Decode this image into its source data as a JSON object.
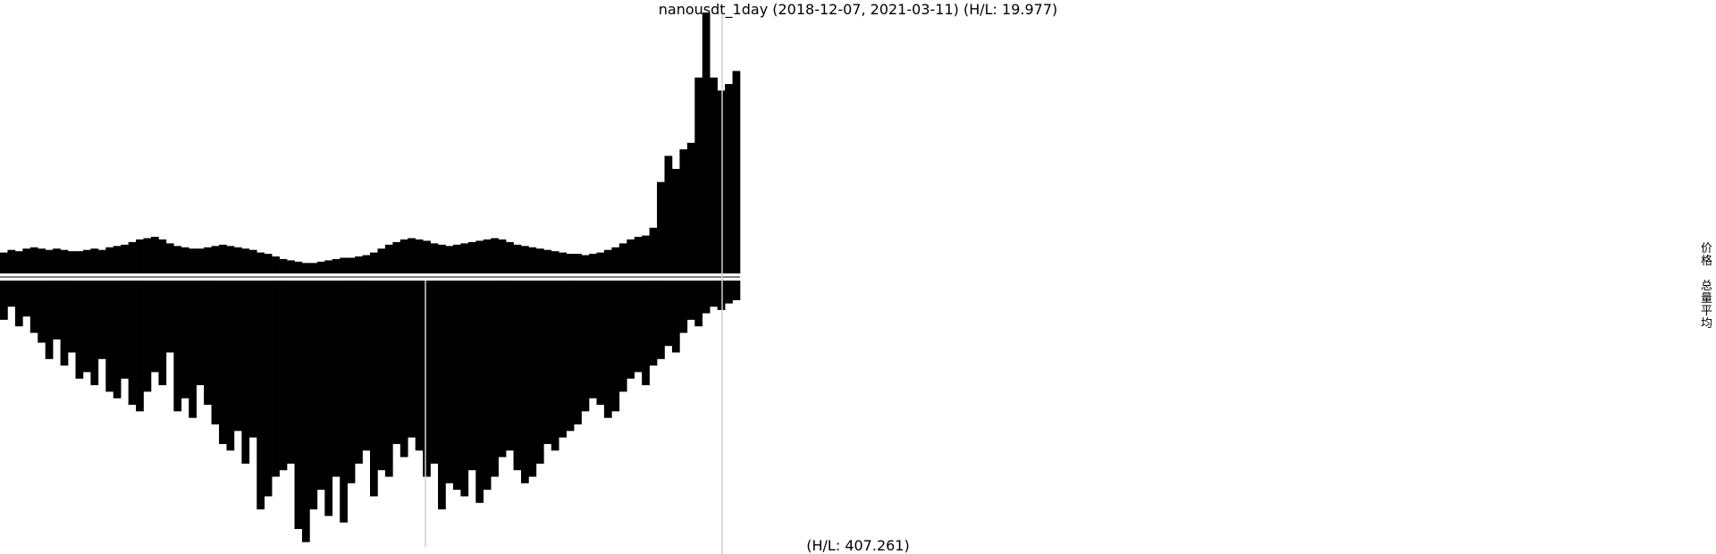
{
  "chart_data": [
    {
      "type": "bar",
      "title": "nanousdt_1day (2018-12-07, 2021-03-11) (H/L: 19.977)",
      "series": [
        {
          "name": "价格",
          "values": [
            1.6,
            1.8,
            1.7,
            1.9,
            2.0,
            1.9,
            1.8,
            1.9,
            1.8,
            1.7,
            1.7,
            1.8,
            1.9,
            1.8,
            2.0,
            2.1,
            2.2,
            2.4,
            2.6,
            2.7,
            2.8,
            2.6,
            2.3,
            2.1,
            2.0,
            1.9,
            1.9,
            2.0,
            2.1,
            2.2,
            2.1,
            2.0,
            1.9,
            1.8,
            1.6,
            1.5,
            1.3,
            1.1,
            1.0,
            0.9,
            0.8,
            0.8,
            0.9,
            1.0,
            1.1,
            1.2,
            1.2,
            1.3,
            1.4,
            1.6,
            1.9,
            2.2,
            2.4,
            2.6,
            2.7,
            2.6,
            2.5,
            2.3,
            2.2,
            2.1,
            2.2,
            2.3,
            2.4,
            2.5,
            2.6,
            2.7,
            2.6,
            2.4,
            2.2,
            2.1,
            2.0,
            1.9,
            1.8,
            1.7,
            1.6,
            1.5,
            1.5,
            1.4,
            1.5,
            1.6,
            1.8,
            2.0,
            2.3,
            2.6,
            2.8,
            2.9,
            3.5,
            7.0,
            9.0,
            8.0,
            9.5,
            10.0,
            15.0,
            19.977,
            15.0,
            14.0,
            14.5,
            15.5
          ]
        },
        {
          "name": "总量平均",
          "values": [
            60,
            40,
            70,
            55,
            80,
            95,
            120,
            90,
            130,
            110,
            150,
            140,
            160,
            120,
            170,
            180,
            150,
            190,
            200,
            170,
            140,
            160,
            110,
            200,
            180,
            210,
            160,
            190,
            220,
            250,
            260,
            230,
            280,
            240,
            350,
            330,
            300,
            290,
            280,
            380,
            400,
            350,
            320,
            360,
            300,
            370,
            310,
            280,
            260,
            330,
            290,
            300,
            250,
            270,
            240,
            260,
            300,
            280,
            350,
            310,
            320,
            330,
            290,
            340,
            320,
            300,
            270,
            260,
            290,
            310,
            300,
            280,
            250,
            260,
            240,
            230,
            220,
            200,
            180,
            190,
            210,
            200,
            170,
            150,
            140,
            160,
            130,
            120,
            100,
            110,
            80,
            60,
            70,
            50,
            40,
            45,
            35,
            30
          ]
        }
      ],
      "ylim": [
        0,
        19.977
      ],
      "grid": false,
      "legend": "right"
    },
    {
      "type": "bar",
      "title": "(H/L: 407.261)",
      "ylim": [
        0,
        407.261
      ]
    }
  ]
}
